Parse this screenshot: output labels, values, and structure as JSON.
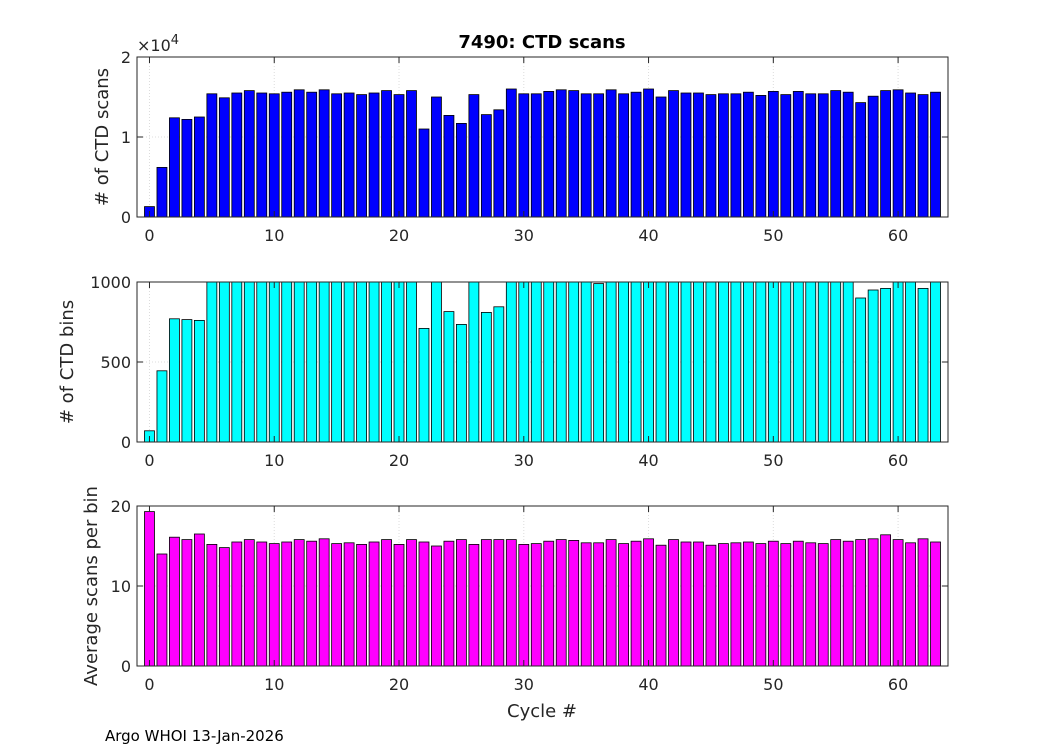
{
  "title": "7490: CTD scans",
  "footer": "Argo WHOI 13-Jan-2026",
  "xlabel": "Cycle #",
  "chart_data": [
    {
      "type": "bar",
      "ylabel": "# of CTD scans",
      "exponent_label": "×10",
      "exponent_power": "4",
      "color": "#0000ff",
      "xlim": [
        -1,
        64
      ],
      "ylim": [
        0,
        2
      ],
      "xticks": [
        0,
        10,
        20,
        30,
        40,
        50,
        60
      ],
      "yticks": [
        0,
        1,
        2
      ],
      "x": [
        0,
        1,
        2,
        3,
        4,
        5,
        6,
        7,
        8,
        9,
        10,
        11,
        12,
        13,
        14,
        15,
        16,
        17,
        18,
        19,
        20,
        21,
        22,
        23,
        24,
        25,
        26,
        27,
        28,
        29,
        30,
        31,
        32,
        33,
        34,
        35,
        36,
        37,
        38,
        39,
        40,
        41,
        42,
        43,
        44,
        45,
        46,
        47,
        48,
        49,
        50,
        51,
        52,
        53,
        54,
        55,
        56,
        57,
        58,
        59,
        60,
        61,
        62,
        63
      ],
      "values": [
        0.13,
        0.62,
        1.24,
        1.22,
        1.25,
        1.54,
        1.49,
        1.55,
        1.58,
        1.55,
        1.54,
        1.56,
        1.59,
        1.56,
        1.59,
        1.54,
        1.55,
        1.53,
        1.55,
        1.58,
        1.53,
        1.58,
        1.1,
        1.5,
        1.27,
        1.17,
        1.53,
        1.28,
        1.34,
        1.6,
        1.54,
        1.54,
        1.57,
        1.59,
        1.58,
        1.54,
        1.54,
        1.59,
        1.54,
        1.56,
        1.6,
        1.5,
        1.58,
        1.55,
        1.55,
        1.53,
        1.54,
        1.54,
        1.56,
        1.52,
        1.57,
        1.53,
        1.57,
        1.54,
        1.54,
        1.58,
        1.56,
        1.43,
        1.51,
        1.58,
        1.59,
        1.55,
        1.53,
        1.56
      ]
    },
    {
      "type": "bar",
      "ylabel": "# of CTD bins",
      "color": "#00ffff",
      "xlim": [
        -1,
        64
      ],
      "ylim": [
        0,
        1000
      ],
      "xticks": [
        0,
        10,
        20,
        30,
        40,
        50,
        60
      ],
      "yticks": [
        0,
        500,
        1000
      ],
      "x": [
        0,
        1,
        2,
        3,
        4,
        5,
        6,
        7,
        8,
        9,
        10,
        11,
        12,
        13,
        14,
        15,
        16,
        17,
        18,
        19,
        20,
        21,
        22,
        23,
        24,
        25,
        26,
        27,
        28,
        29,
        30,
        31,
        32,
        33,
        34,
        35,
        36,
        37,
        38,
        39,
        40,
        41,
        42,
        43,
        44,
        45,
        46,
        47,
        48,
        49,
        50,
        51,
        52,
        53,
        54,
        55,
        56,
        57,
        58,
        59,
        60,
        61,
        62,
        63
      ],
      "values": [
        70,
        445,
        770,
        765,
        760,
        1000,
        1000,
        1000,
        1000,
        1000,
        1000,
        1000,
        1000,
        1000,
        1000,
        1000,
        1000,
        1000,
        1000,
        1000,
        1000,
        1000,
        710,
        1000,
        815,
        735,
        1000,
        810,
        845,
        1000,
        1000,
        1000,
        1000,
        1000,
        1000,
        1000,
        990,
        1000,
        1000,
        1000,
        1000,
        1000,
        1000,
        1000,
        1000,
        1000,
        1000,
        1000,
        1000,
        1000,
        1000,
        1000,
        1000,
        1000,
        1000,
        1000,
        1000,
        900,
        950,
        960,
        1000,
        1000,
        960,
        1000
      ]
    },
    {
      "type": "bar",
      "ylabel": "Average scans per bin",
      "color": "#ff00ff",
      "xlim": [
        -1,
        64
      ],
      "ylim": [
        0,
        20
      ],
      "xticks": [
        0,
        10,
        20,
        30,
        40,
        50,
        60
      ],
      "yticks": [
        0,
        10,
        20
      ],
      "x": [
        0,
        1,
        2,
        3,
        4,
        5,
        6,
        7,
        8,
        9,
        10,
        11,
        12,
        13,
        14,
        15,
        16,
        17,
        18,
        19,
        20,
        21,
        22,
        23,
        24,
        25,
        26,
        27,
        28,
        29,
        30,
        31,
        32,
        33,
        34,
        35,
        36,
        37,
        38,
        39,
        40,
        41,
        42,
        43,
        44,
        45,
        46,
        47,
        48,
        49,
        50,
        51,
        52,
        53,
        54,
        55,
        56,
        57,
        58,
        59,
        60,
        61,
        62,
        63
      ],
      "values": [
        19.3,
        14.0,
        16.1,
        15.8,
        16.5,
        15.2,
        14.8,
        15.5,
        15.8,
        15.5,
        15.3,
        15.5,
        15.8,
        15.6,
        15.9,
        15.3,
        15.4,
        15.2,
        15.5,
        15.8,
        15.2,
        15.8,
        15.5,
        15.0,
        15.6,
        15.8,
        15.2,
        15.8,
        15.8,
        15.8,
        15.2,
        15.3,
        15.6,
        15.8,
        15.7,
        15.4,
        15.4,
        15.8,
        15.3,
        15.6,
        15.9,
        15.1,
        15.8,
        15.5,
        15.5,
        15.1,
        15.3,
        15.4,
        15.5,
        15.3,
        15.6,
        15.3,
        15.6,
        15.4,
        15.3,
        15.8,
        15.6,
        15.8,
        15.9,
        16.4,
        15.8,
        15.4,
        15.9,
        15.5
      ]
    }
  ]
}
